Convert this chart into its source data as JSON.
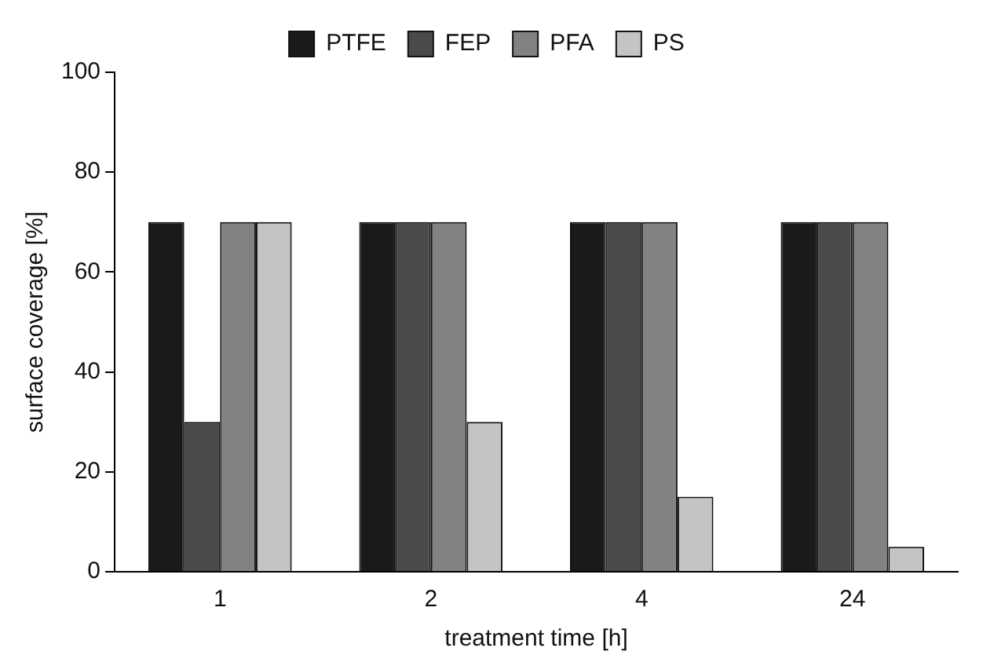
{
  "chart_data": {
    "type": "bar",
    "xlabel": "treatment time [h]",
    "ylabel": "surface coverage [%]",
    "categories": [
      "1",
      "2",
      "4",
      "24"
    ],
    "series": [
      {
        "name": "PTFE",
        "color": "#1a1a1a",
        "values": [
          70,
          70,
          70,
          70
        ]
      },
      {
        "name": "FEP",
        "color": "#4a4a4a",
        "values": [
          30,
          70,
          70,
          70
        ]
      },
      {
        "name": "PFA",
        "color": "#828282",
        "values": [
          70,
          70,
          70,
          70
        ]
      },
      {
        "name": "PS",
        "color": "#c4c4c4",
        "values": [
          70,
          30,
          15,
          5
        ]
      }
    ],
    "ylim": [
      0,
      100
    ],
    "yticks": [
      0,
      20,
      40,
      60,
      80,
      100
    ],
    "grid": false,
    "legend": "top"
  }
}
